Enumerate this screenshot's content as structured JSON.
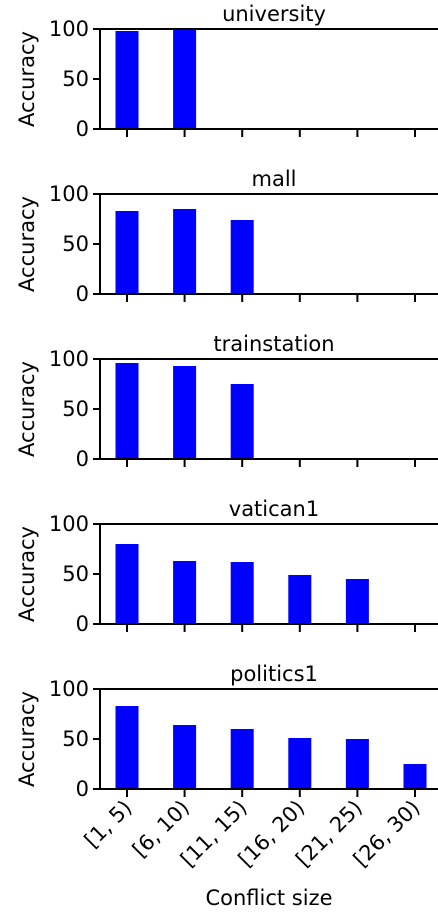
{
  "chart_data": [
    {
      "type": "bar",
      "title": "university",
      "ylabel": "Accuracy",
      "values": [
        98,
        100,
        null,
        null,
        null,
        null
      ],
      "color": "#0000ff",
      "ylim": [
        0,
        100
      ],
      "yticks": [
        0,
        50,
        100
      ]
    },
    {
      "type": "bar",
      "title": "mall",
      "ylabel": "Accuracy",
      "values": [
        83,
        85,
        74,
        null,
        null,
        null
      ],
      "color": "#0000ff",
      "ylim": [
        0,
        100
      ],
      "yticks": [
        0,
        50,
        100
      ]
    },
    {
      "type": "bar",
      "title": "trainstation",
      "ylabel": "Accuracy",
      "values": [
        96,
        93,
        75,
        null,
        null,
        null
      ],
      "color": "#0000ff",
      "ylim": [
        0,
        100
      ],
      "yticks": [
        0,
        50,
        100
      ]
    },
    {
      "type": "bar",
      "title": "vatican1",
      "ylabel": "Accuracy",
      "values": [
        80,
        63,
        62,
        49,
        45,
        null
      ],
      "color": "#0000ff",
      "ylim": [
        0,
        100
      ],
      "yticks": [
        0,
        50,
        100
      ]
    },
    {
      "type": "bar",
      "title": "politics1",
      "ylabel": "Accuracy",
      "xlabel": "Conflict size",
      "categories": [
        "[1, 5)",
        "[6, 10)",
        "[11, 15)",
        "[16, 20)",
        "[21, 25)",
        "[26, 30)"
      ],
      "values": [
        83,
        64,
        60,
        51,
        50,
        25
      ],
      "color": "#0000ff",
      "ylim": [
        0,
        100
      ],
      "yticks": [
        0,
        50,
        100
      ]
    }
  ]
}
